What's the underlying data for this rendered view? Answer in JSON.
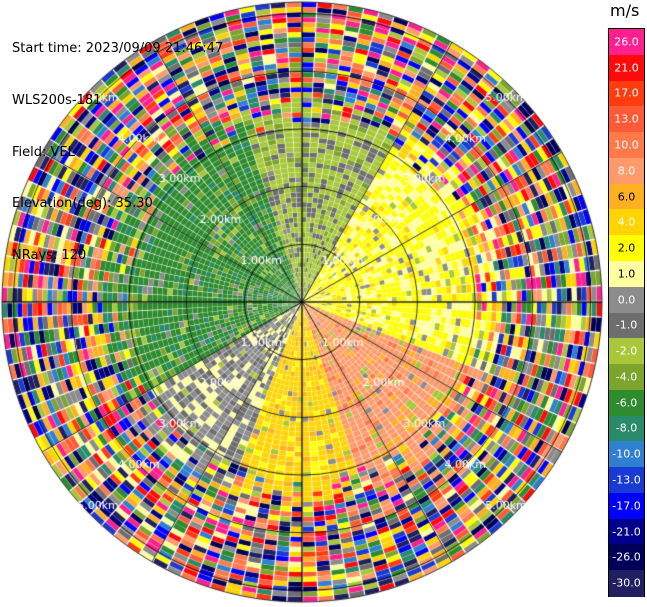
{
  "header": {
    "start_time": "Start time: 2023/09/09 21:46:47",
    "site": "WLS200s-181",
    "field": "Field: VEL",
    "elevation": "Elevation(deg): 35.30",
    "nrays": "NRays: 120"
  },
  "colorbar": {
    "unit": "m/s",
    "levels": [
      {
        "label": "26.0",
        "color": "#ff1f8f"
      },
      {
        "label": "21.0",
        "color": "#ff0a0a"
      },
      {
        "label": "17.0",
        "color": "#ff3c10"
      },
      {
        "label": "13.0",
        "color": "#ff5a37"
      },
      {
        "label": "10.0",
        "color": "#ff7a4a"
      },
      {
        "label": "8.0",
        "color": "#ff9a6a"
      },
      {
        "label": "6.0",
        "color": "#ffb020"
      },
      {
        "label": "4.0",
        "color": "#ffd400"
      },
      {
        "label": "2.0",
        "color": "#ffff00"
      },
      {
        "label": "1.0",
        "color": "#ffffa0"
      },
      {
        "label": "0.0",
        "color": "#8c8c8c"
      },
      {
        "label": "-1.0",
        "color": "#6e6e6e"
      },
      {
        "label": "-2.0",
        "color": "#a8c83a"
      },
      {
        "label": "-4.0",
        "color": "#7da52e"
      },
      {
        "label": "-6.0",
        "color": "#2e8b2e"
      },
      {
        "label": "-8.0",
        "color": "#2a8b6a"
      },
      {
        "label": "-10.0",
        "color": "#2f80d0"
      },
      {
        "label": "-13.0",
        "color": "#1a3ad4"
      },
      {
        "label": "-17.0",
        "color": "#0000ff"
      },
      {
        "label": "-21.0",
        "color": "#00008b"
      },
      {
        "label": "-26.0",
        "color": "#00005a"
      },
      {
        "label": "-30.0",
        "color": "#202060"
      }
    ]
  },
  "chart_data": {
    "type": "heatmap",
    "projection": "polar-ppi",
    "field": "VEL",
    "units": "m/s",
    "nrays": 120,
    "range_rings_km": [
      "1.00km",
      "2.00km",
      "3.00km",
      "4.00km",
      "5.00km"
    ],
    "range_rings": [
      1,
      2,
      3,
      4,
      5
    ],
    "max_range_km": 5.2,
    "dominant_pattern": [
      {
        "region": "near-range west/northwest",
        "approx_velocity_ms": -6.0
      },
      {
        "region": "near-range east/northeast",
        "approx_velocity_ms": 2.0
      },
      {
        "region": "near-range southeast",
        "approx_velocity_ms": 8.0
      },
      {
        "region": "near-range southwest",
        "approx_velocity_ms": 0.0
      },
      {
        "region": "far range (> 3 km)",
        "approx_velocity_ms": "noisy / mixed"
      }
    ],
    "grid": true
  }
}
